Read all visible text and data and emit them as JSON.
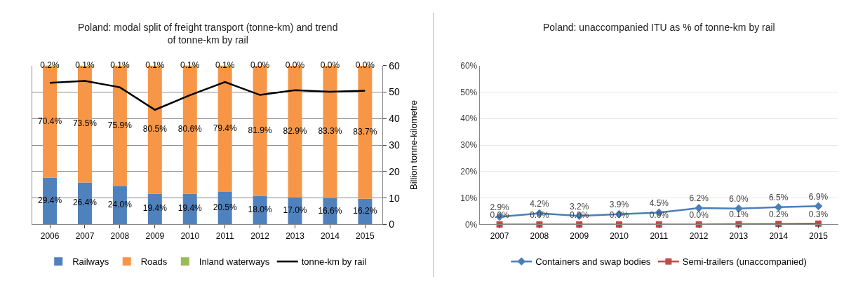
{
  "chart_data": [
    {
      "type": "bar",
      "title": "Poland: modal split of freight transport (tonne-km) and trend of tonne-km by rail",
      "y2label": "Billion tonne-kilometre",
      "stacked": true,
      "categories": [
        "2006",
        "2007",
        "2008",
        "2009",
        "2010",
        "2011",
        "2012",
        "2013",
        "2014",
        "2015"
      ],
      "series": [
        {
          "name": "Railways",
          "color": "#4f81bd",
          "values": [
            29.4,
            26.4,
            24.0,
            19.4,
            19.4,
            20.5,
            18.0,
            17.0,
            16.6,
            16.2
          ],
          "value_labels": [
            "29.4%",
            "26.4%",
            "24.0%",
            "19.4%",
            "19.4%",
            "20.5%",
            "18.0%",
            "17.0%",
            "16.6%",
            "16.2%"
          ]
        },
        {
          "name": "Roads",
          "color": "#f79646",
          "values": [
            70.4,
            73.5,
            75.9,
            80.5,
            80.6,
            79.4,
            81.9,
            82.9,
            83.3,
            83.7
          ],
          "value_labels": [
            "70.4%",
            "73.5%",
            "75.9%",
            "80.5%",
            "80.6%",
            "79.4%",
            "81.9%",
            "82.9%",
            "83.3%",
            "83.7%"
          ]
        },
        {
          "name": "Inland waterways",
          "color": "#9bbb59",
          "values": [
            0.2,
            0.1,
            0.1,
            0.1,
            0.1,
            0.1,
            0.0,
            0.0,
            0.0,
            0.0
          ],
          "value_labels": [
            "0.2%",
            "0.1%",
            "0.1%",
            "0.1%",
            "0.1%",
            "0.1%",
            "0.0%",
            "0.0%",
            "0.0%",
            "0.0%"
          ]
        },
        {
          "name": "tonne-km by rail",
          "type": "line",
          "axis": "y2",
          "color": "#000000",
          "marker": "none",
          "values": [
            53.5,
            54.2,
            51.8,
            43.3,
            48.8,
            53.8,
            48.9,
            50.7,
            50.1,
            50.5
          ]
        }
      ],
      "y2lim": [
        0,
        60
      ],
      "y2ticks": [
        0,
        10,
        20,
        30,
        40,
        50,
        60
      ],
      "grid": true,
      "legend": "bottom"
    },
    {
      "type": "line",
      "title": "Poland: unaccompanied ITU as % of tonne-km by rail",
      "categories": [
        "2007",
        "2008",
        "2009",
        "2010",
        "2011",
        "2012",
        "2013",
        "2014",
        "2015"
      ],
      "series": [
        {
          "name": "Containers and swap bodies",
          "color": "#4a7ebb",
          "marker": "diamond",
          "values": [
            2.9,
            4.2,
            3.2,
            3.9,
            4.5,
            6.2,
            6.0,
            6.5,
            6.9
          ],
          "value_labels": [
            "2.9%",
            "4.2%",
            "3.2%",
            "3.9%",
            "4.5%",
            "6.2%",
            "6.0%",
            "6.5%",
            "6.9%"
          ]
        },
        {
          "name": "Semi-trailers (unaccompanied)",
          "color": "#be4b48",
          "marker": "square",
          "values": [
            0.0,
            0.0,
            0.0,
            0.0,
            0.0,
            0.0,
            0.1,
            0.2,
            0.3
          ],
          "value_labels": [
            "0.0%",
            "0.0%",
            "0.0%",
            "0.0%",
            "0.0%",
            "0.0%",
            "0.1%",
            "0.2%",
            "0.3%"
          ]
        }
      ],
      "ylim": [
        0,
        60
      ],
      "yticks": [
        {
          "value": 0,
          "label": "0%"
        },
        {
          "value": 10,
          "label": "10%"
        },
        {
          "value": 20,
          "label": "20%"
        },
        {
          "value": 30,
          "label": "30%"
        },
        {
          "value": 40,
          "label": "40%"
        },
        {
          "value": 50,
          "label": "50%"
        },
        {
          "value": 60,
          "label": "60%"
        }
      ],
      "grid": "y",
      "legend": "bottom"
    }
  ]
}
